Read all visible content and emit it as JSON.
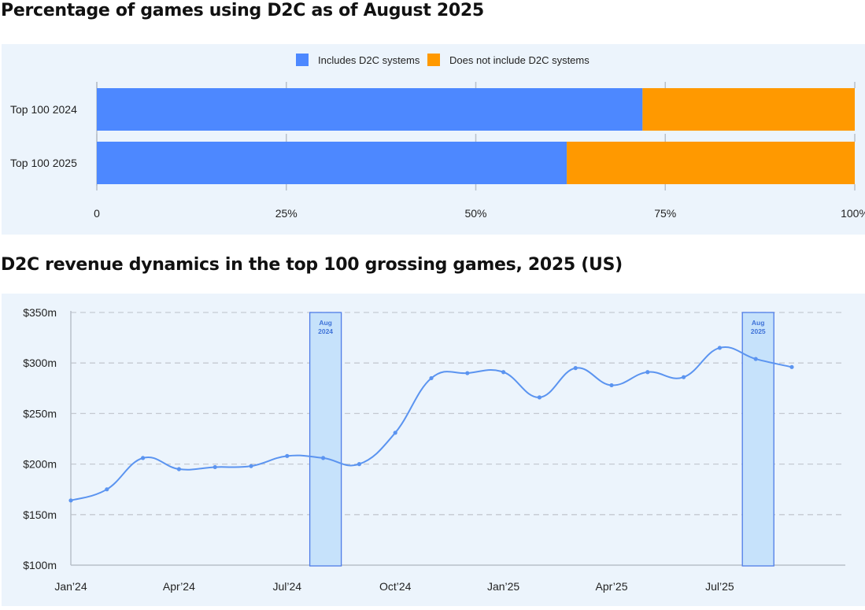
{
  "chart_data": [
    {
      "type": "bar",
      "orientation": "horizontal",
      "stacked": true,
      "title": "Percentage of games using D2C as of August 2025",
      "categories": [
        "Top 100 2024",
        "Top 100 2025"
      ],
      "series": [
        {
          "name": "Includes D2C systems",
          "color": "#4d88ff",
          "values": [
            72,
            62
          ]
        },
        {
          "name": "Does not include D2C systems",
          "color": "#ff9900",
          "values": [
            28,
            38
          ]
        }
      ],
      "xlim": [
        0,
        100
      ],
      "ticks": [
        0,
        25,
        50,
        75,
        100
      ],
      "tick_labels": [
        "0",
        "25%",
        "50%",
        "75%",
        "100%"
      ],
      "legend": "top-center"
    },
    {
      "type": "line",
      "title": "D2C revenue dynamics in the top 100 grossing games, 2025 (US)",
      "color": "#5b94f0",
      "ylim": [
        100,
        350
      ],
      "yticks": [
        100,
        150,
        200,
        250,
        300,
        350
      ],
      "ytick_labels": [
        "$100m",
        "$150m",
        "$200m",
        "$250m",
        "$300m",
        "$350m"
      ],
      "x_tick_labels": [
        "Jan’24",
        "Apr’24",
        "Jul’24",
        "Oct’24",
        "Jan’25",
        "Apr’25",
        "Jul’25"
      ],
      "x_tick_index": [
        0,
        3,
        6,
        9,
        12,
        15,
        18
      ],
      "months": [
        "Jan 2024",
        "Feb 2024",
        "Mar 2024",
        "Apr 2024",
        "May 2024",
        "Jun 2024",
        "Jul 2024",
        "Aug 2024",
        "Sep 2024",
        "Oct 2024",
        "Nov 2024",
        "Dec 2024",
        "Jan 2025",
        "Feb 2025",
        "Mar 2025",
        "Apr 2025",
        "May 2025",
        "Jun 2025",
        "Jul 2025",
        "Aug 2025",
        "Sep 2025"
      ],
      "values": [
        164,
        175,
        206,
        195,
        197,
        198,
        208,
        206,
        200,
        231,
        285,
        290,
        291,
        266,
        295,
        278,
        291,
        286,
        315,
        304,
        296
      ],
      "highlights": [
        {
          "index": 7,
          "label_line1": "Aug",
          "label_line2": "2024"
        },
        {
          "index": 19,
          "label_line1": "Aug",
          "label_line2": "2025"
        }
      ],
      "grid": true
    }
  ]
}
